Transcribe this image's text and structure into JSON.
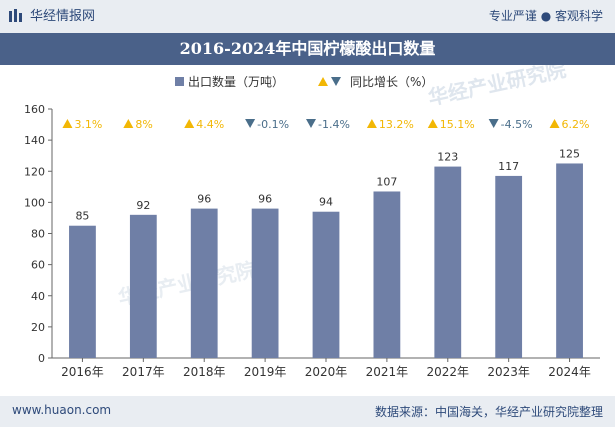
{
  "header": {
    "brand": "华经情报网",
    "tagline": "专业严谨 ● 客观科学",
    "title": "2016-2024年中国柠檬酸出口数量"
  },
  "footer": {
    "site": "www.huaon.com",
    "source": "数据来源：中国海关，华经产业研究院整理"
  },
  "watermark": "华经产业研究院",
  "colors": {
    "bar": "#6f7fa6",
    "up": "#f2b705",
    "down": "#4a6e8a",
    "title_bg": "#4a6189"
  },
  "chart_data": {
    "type": "bar",
    "categories": [
      "2016年",
      "2017年",
      "2018年",
      "2019年",
      "2020年",
      "2021年",
      "2022年",
      "2023年",
      "2024年"
    ],
    "series": [
      {
        "name": "出口数量（万吨）",
        "values": [
          85,
          92,
          96,
          96,
          94,
          107,
          123,
          117,
          125
        ]
      }
    ],
    "growth": {
      "name": "同比增长（%）",
      "labels": [
        "3.1%",
        "8%",
        "4.4%",
        "-0.1%",
        "-1.4%",
        "13.2%",
        "15.1%",
        "-4.5%",
        "6.2%"
      ],
      "direction": [
        "up",
        "up",
        "up",
        "down",
        "down",
        "up",
        "up",
        "down",
        "up"
      ]
    },
    "yticks": [
      "0",
      "20",
      "40",
      "60",
      "80",
      "100",
      "120",
      "140",
      "160"
    ],
    "ylim": [
      0,
      160
    ],
    "legend_position": "top"
  }
}
